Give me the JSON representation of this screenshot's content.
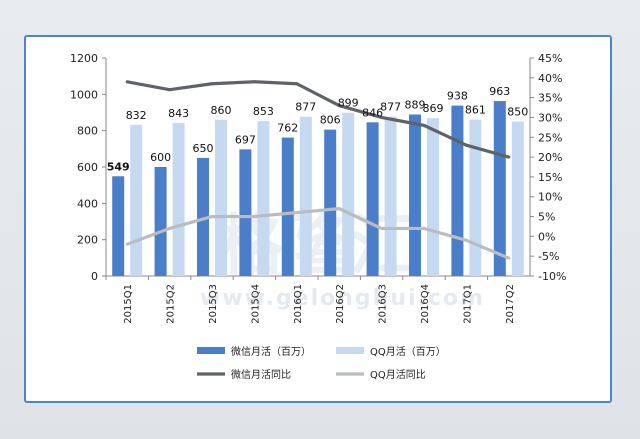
{
  "chart_data": {
    "type": "bar",
    "categories": [
      "2015Q1",
      "2015Q2",
      "2015Q3",
      "2015Q4",
      "2016Q1",
      "2016Q2",
      "2016Q3",
      "2016Q4",
      "2017Q1",
      "2017Q2"
    ],
    "series": [
      {
        "name": "微信月活（百万）",
        "type": "bar",
        "axis": "left",
        "color": "#4a7ec8",
        "values": [
          549,
          600,
          650,
          697,
          762,
          806,
          846,
          889,
          938,
          963
        ]
      },
      {
        "name": "QQ月活（百万）",
        "type": "bar",
        "axis": "left",
        "color": "#c5d9f1",
        "values": [
          832,
          843,
          860,
          853,
          877,
          899,
          877,
          869,
          861,
          850
        ]
      },
      {
        "name": "微信月活同比",
        "type": "line",
        "axis": "right",
        "color": "#5f6368",
        "values": [
          0.39,
          0.37,
          0.385,
          0.39,
          0.385,
          0.33,
          0.3,
          0.28,
          0.23,
          0.2
        ]
      },
      {
        "name": "QQ月活同比",
        "type": "line",
        "axis": "right",
        "color": "#b9bdc2",
        "values": [
          -0.02,
          0.02,
          0.05,
          0.05,
          0.06,
          0.07,
          0.02,
          0.02,
          -0.01,
          -0.055
        ]
      }
    ],
    "left_axis": {
      "ylim": [
        0,
        1200
      ],
      "ticks": [
        0,
        200,
        400,
        600,
        800,
        1000,
        1200
      ]
    },
    "right_axis": {
      "ylim": [
        -0.1,
        0.45
      ],
      "ticks": [
        "-10%",
        "-5%",
        "0%",
        "5%",
        "10%",
        "15%",
        "20%",
        "25%",
        "30%",
        "35%",
        "40%",
        "45%"
      ]
    },
    "legend_position": "bottom",
    "grid": false
  },
  "watermark": {
    "text": "格隆汇",
    "url": "www.gelonghui.com"
  }
}
